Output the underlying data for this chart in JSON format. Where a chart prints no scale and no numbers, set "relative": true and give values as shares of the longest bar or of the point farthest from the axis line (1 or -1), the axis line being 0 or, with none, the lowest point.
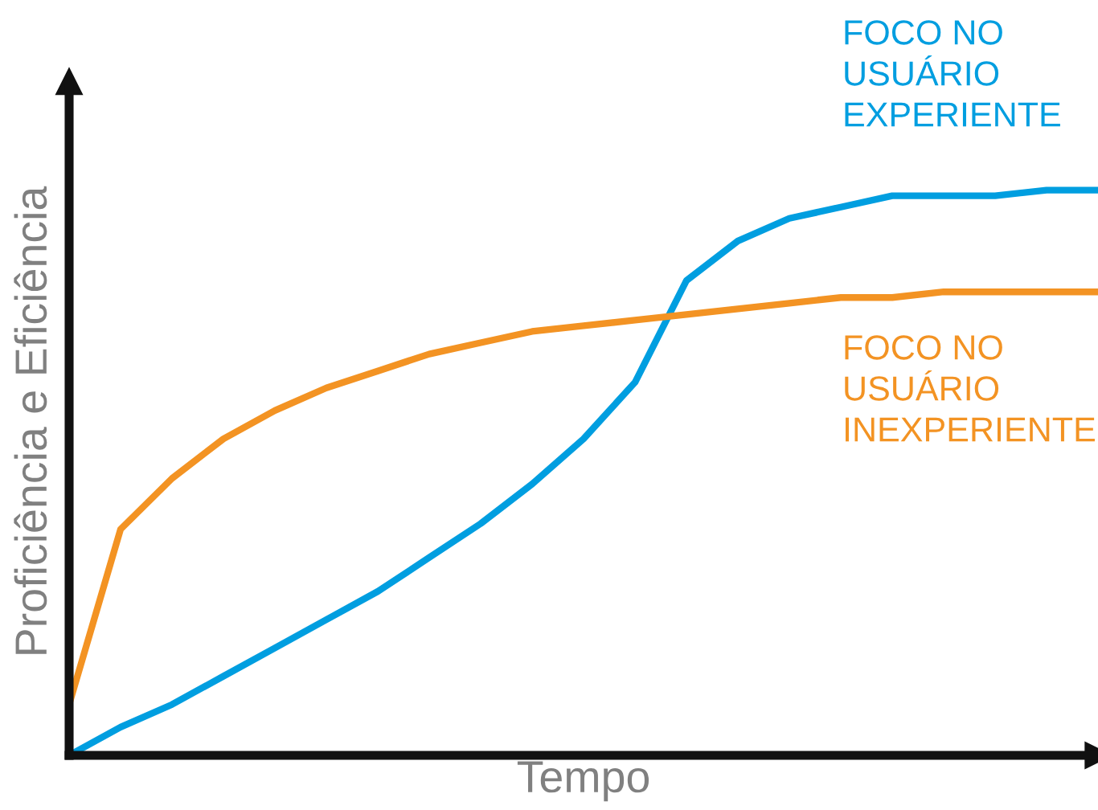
{
  "chart_data": {
    "type": "line",
    "relative": true,
    "xlabel": "Tempo",
    "ylabel": "Proficiência e Eficiência",
    "legend": false,
    "grid": false,
    "tick_labels": false,
    "marker": "none",
    "line_style": "solid",
    "categories": [
      null,
      null,
      null,
      null,
      null,
      null,
      null,
      null,
      null,
      null,
      null,
      null,
      null,
      null,
      null,
      null,
      null,
      null,
      null,
      null,
      null
    ],
    "series": [
      {
        "name": "FOCO NO\nUSUÁRIO\nEXPERIENTE",
        "color": "#009ee0",
        "values": [
          0,
          0.05,
          0.09,
          0.14,
          0.19,
          0.24,
          0.29,
          0.35,
          0.41,
          0.48,
          0.56,
          0.66,
          0.84,
          0.91,
          0.95,
          0.97,
          0.99,
          0.99,
          0.99,
          1,
          1
        ]
      },
      {
        "name": "FOCO NO\nUSUÁRIO\nINEXPERIENTE",
        "color": "#f39323",
        "values": [
          0.09,
          0.4,
          0.49,
          0.56,
          0.61,
          0.65,
          0.68,
          0.71,
          0.73,
          0.75,
          0.76,
          0.77,
          0.78,
          0.79,
          0.8,
          0.81,
          0.81,
          0.82,
          0.82,
          0.82,
          0.82
        ]
      }
    ]
  }
}
